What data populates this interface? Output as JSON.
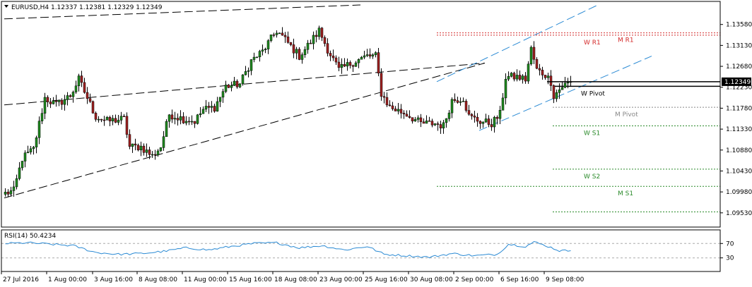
{
  "window": {
    "symbol_title": "EURUSD,H4  1.12337 1.12381 1.12329 1.12349"
  },
  "chart_data": {
    "type": "candlestick",
    "title": "EURUSD,H4  1.12337 1.12381 1.12329 1.12349",
    "ylim": [
      1.093,
      1.14
    ],
    "price_ticks": [
      "1.13580",
      "1.13130",
      "1.12680",
      "1.12230",
      "1.11780",
      "1.11330",
      "1.10880",
      "1.10430",
      "1.09980",
      "1.09530"
    ],
    "current_price": "1.12349",
    "x_labels": [
      "27 Jul 2016",
      "1 Aug 00:00",
      "3 Aug 16:00",
      "8 Aug 08:00",
      "11 Aug 00:00",
      "15 Aug 16:00",
      "18 Aug 08:00",
      "23 Aug 00:00",
      "25 Aug 16:00",
      "30 Aug 08:00",
      "2 Sep 00:00",
      "6 Sep 16:00",
      "9 Sep 08:00"
    ],
    "anchors": [
      {
        "i": 0,
        "p": 1.0995
      },
      {
        "i": 3,
        "p": 1.1
      },
      {
        "i": 6,
        "p": 1.107
      },
      {
        "i": 10,
        "p": 1.109
      },
      {
        "i": 14,
        "p": 1.12
      },
      {
        "i": 18,
        "p": 1.1185
      },
      {
        "i": 23,
        "p": 1.1205
      },
      {
        "i": 26,
        "p": 1.124
      },
      {
        "i": 32,
        "p": 1.116
      },
      {
        "i": 36,
        "p": 1.115
      },
      {
        "i": 42,
        "p": 1.1155
      },
      {
        "i": 44,
        "p": 1.1095
      },
      {
        "i": 48,
        "p": 1.1095
      },
      {
        "i": 52,
        "p": 1.1075
      },
      {
        "i": 55,
        "p": 1.1095
      },
      {
        "i": 58,
        "p": 1.1165
      },
      {
        "i": 63,
        "p": 1.1155
      },
      {
        "i": 67,
        "p": 1.115
      },
      {
        "i": 70,
        "p": 1.1175
      },
      {
        "i": 74,
        "p": 1.118
      },
      {
        "i": 78,
        "p": 1.1225
      },
      {
        "i": 83,
        "p": 1.123
      },
      {
        "i": 87,
        "p": 1.128
      },
      {
        "i": 91,
        "p": 1.13
      },
      {
        "i": 96,
        "p": 1.1345
      },
      {
        "i": 99,
        "p": 1.1325
      },
      {
        "i": 104,
        "p": 1.129
      },
      {
        "i": 108,
        "p": 1.132
      },
      {
        "i": 111,
        "p": 1.1345
      },
      {
        "i": 114,
        "p": 1.1305
      },
      {
        "i": 118,
        "p": 1.126
      },
      {
        "i": 124,
        "p": 1.128
      },
      {
        "i": 128,
        "p": 1.129
      },
      {
        "i": 131,
        "p": 1.129
      },
      {
        "i": 133,
        "p": 1.121
      },
      {
        "i": 136,
        "p": 1.118
      },
      {
        "i": 142,
        "p": 1.1165
      },
      {
        "i": 147,
        "p": 1.1145
      },
      {
        "i": 152,
        "p": 1.1145
      },
      {
        "i": 155,
        "p": 1.114
      },
      {
        "i": 158,
        "p": 1.1195
      },
      {
        "i": 162,
        "p": 1.12
      },
      {
        "i": 164,
        "p": 1.116
      },
      {
        "i": 168,
        "p": 1.115
      },
      {
        "i": 172,
        "p": 1.1145
      },
      {
        "i": 175,
        "p": 1.1165
      },
      {
        "i": 177,
        "p": 1.1245
      },
      {
        "i": 181,
        "p": 1.1245
      },
      {
        "i": 184,
        "p": 1.124
      },
      {
        "i": 186,
        "p": 1.1305
      },
      {
        "i": 188,
        "p": 1.126
      },
      {
        "i": 191,
        "p": 1.125
      },
      {
        "i": 193,
        "p": 1.1235
      },
      {
        "i": 194,
        "p": 1.1205
      },
      {
        "i": 197,
        "p": 1.1225
      },
      {
        "i": 200,
        "p": 1.1235
      }
    ],
    "levels": [
      {
        "name": "W R1",
        "price": 1.1335,
        "color": "#d42a2a",
        "style": "dotted",
        "from_i": 153,
        "label_i": 205
      },
      {
        "name": "M R1",
        "price": 1.134,
        "color": "#d42a2a",
        "style": "dotted",
        "from_i": 153,
        "label_i": 217
      },
      {
        "name": "W Pivot",
        "price": 1.1225,
        "color": "#000000",
        "style": "solid",
        "from_i": 194,
        "label_i": 204
      },
      {
        "name": "M Pivot",
        "price": 1.118,
        "color": "#888888",
        "style": "dotted",
        "from_i": 194,
        "label_i": 216
      },
      {
        "name": "W S1",
        "price": 1.114,
        "color": "#2a8a2a",
        "style": "dotted",
        "from_i": 194,
        "label_i": 205
      },
      {
        "name": "W S2",
        "price": 1.1047,
        "color": "#2a8a2a",
        "style": "dotted",
        "from_i": 194,
        "label_i": 205
      },
      {
        "name": "M S1",
        "price": 1.101,
        "color": "#2a8a2a",
        "style": "dotted",
        "from_i": 153,
        "label_i": 217
      },
      {
        "name": "",
        "price": 1.0955,
        "color": "#2a8a2a",
        "style": "dotted",
        "from_i": 194,
        "label_i": null
      }
    ],
    "trendlines": [
      {
        "color": "#000000",
        "from": {
          "i": 0,
          "p": 1.1185
        },
        "to": {
          "i": 170,
          "p": 1.1275
        }
      },
      {
        "color": "#000000",
        "from": {
          "i": 0,
          "p": 1.0985
        },
        "to": {
          "i": 170,
          "p": 1.1275
        }
      },
      {
        "color": "#000000",
        "from": {
          "i": 0,
          "p": 1.137
        },
        "to": {
          "i": 126,
          "p": 1.14
        }
      },
      {
        "color": "#2a8ad4",
        "from": {
          "i": 153,
          "p": 1.1235
        },
        "to": {
          "i": 210,
          "p": 1.14
        }
      },
      {
        "color": "#2a8ad4",
        "from": {
          "i": 168,
          "p": 1.113
        },
        "to": {
          "i": 229,
          "p": 1.129
        }
      }
    ],
    "rsi": {
      "label": "RSI(14) 50.4234",
      "ylim": [
        0,
        100
      ],
      "levels": [
        70,
        30
      ],
      "ticks": [
        "70",
        "30"
      ],
      "anchors": [
        {
          "i": 0,
          "v": 70
        },
        {
          "i": 8,
          "v": 72
        },
        {
          "i": 16,
          "v": 68
        },
        {
          "i": 24,
          "v": 64
        },
        {
          "i": 32,
          "v": 45
        },
        {
          "i": 40,
          "v": 40
        },
        {
          "i": 48,
          "v": 42
        },
        {
          "i": 56,
          "v": 48
        },
        {
          "i": 64,
          "v": 58
        },
        {
          "i": 72,
          "v": 52
        },
        {
          "i": 80,
          "v": 62
        },
        {
          "i": 88,
          "v": 70
        },
        {
          "i": 96,
          "v": 72
        },
        {
          "i": 104,
          "v": 58
        },
        {
          "i": 112,
          "v": 64
        },
        {
          "i": 120,
          "v": 52
        },
        {
          "i": 128,
          "v": 62
        },
        {
          "i": 134,
          "v": 40
        },
        {
          "i": 142,
          "v": 36
        },
        {
          "i": 150,
          "v": 32
        },
        {
          "i": 158,
          "v": 42
        },
        {
          "i": 166,
          "v": 36
        },
        {
          "i": 174,
          "v": 40
        },
        {
          "i": 178,
          "v": 68
        },
        {
          "i": 184,
          "v": 62
        },
        {
          "i": 187,
          "v": 74
        },
        {
          "i": 192,
          "v": 62
        },
        {
          "i": 196,
          "v": 50
        },
        {
          "i": 200,
          "v": 50
        }
      ]
    },
    "colors": {
      "bull": "#1f8a1f",
      "bear": "#a02020",
      "grid": "#c8c8c8"
    }
  }
}
